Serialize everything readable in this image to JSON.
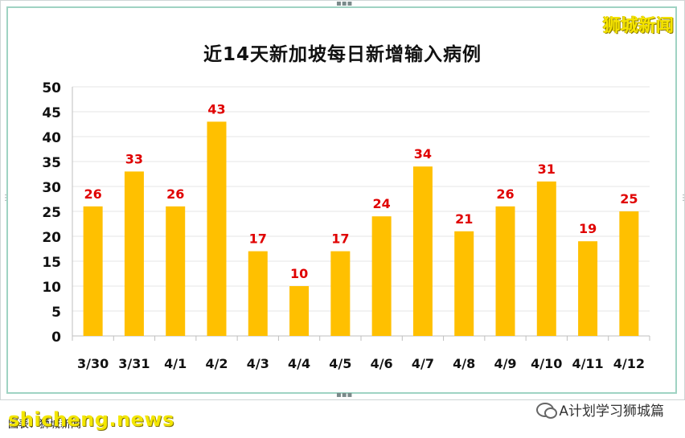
{
  "brand": "狮城新闻",
  "footer": {
    "source_text": "图表：狮城新闻",
    "watermark": "shicheng.news",
    "wechat": "A计划学习狮城篇"
  },
  "colors": {
    "bar": "#ffc000",
    "data_label": "#e00000",
    "grid": "#e6e6e6",
    "axis": "#bfbfbf"
  },
  "chart_data": {
    "type": "bar",
    "title": "近14天新加坡每日新增输入病例",
    "categories": [
      "3/30",
      "3/31",
      "4/1",
      "4/2",
      "4/3",
      "4/4",
      "4/5",
      "4/6",
      "4/7",
      "4/8",
      "4/9",
      "4/10",
      "4/11",
      "4/12"
    ],
    "values": [
      26,
      33,
      26,
      43,
      17,
      10,
      17,
      24,
      34,
      21,
      26,
      31,
      19,
      25
    ],
    "ylim": [
      0,
      50
    ],
    "yticks": [
      0,
      5,
      10,
      15,
      20,
      25,
      30,
      35,
      40,
      45,
      50
    ],
    "grid": true,
    "data_labels": true
  }
}
